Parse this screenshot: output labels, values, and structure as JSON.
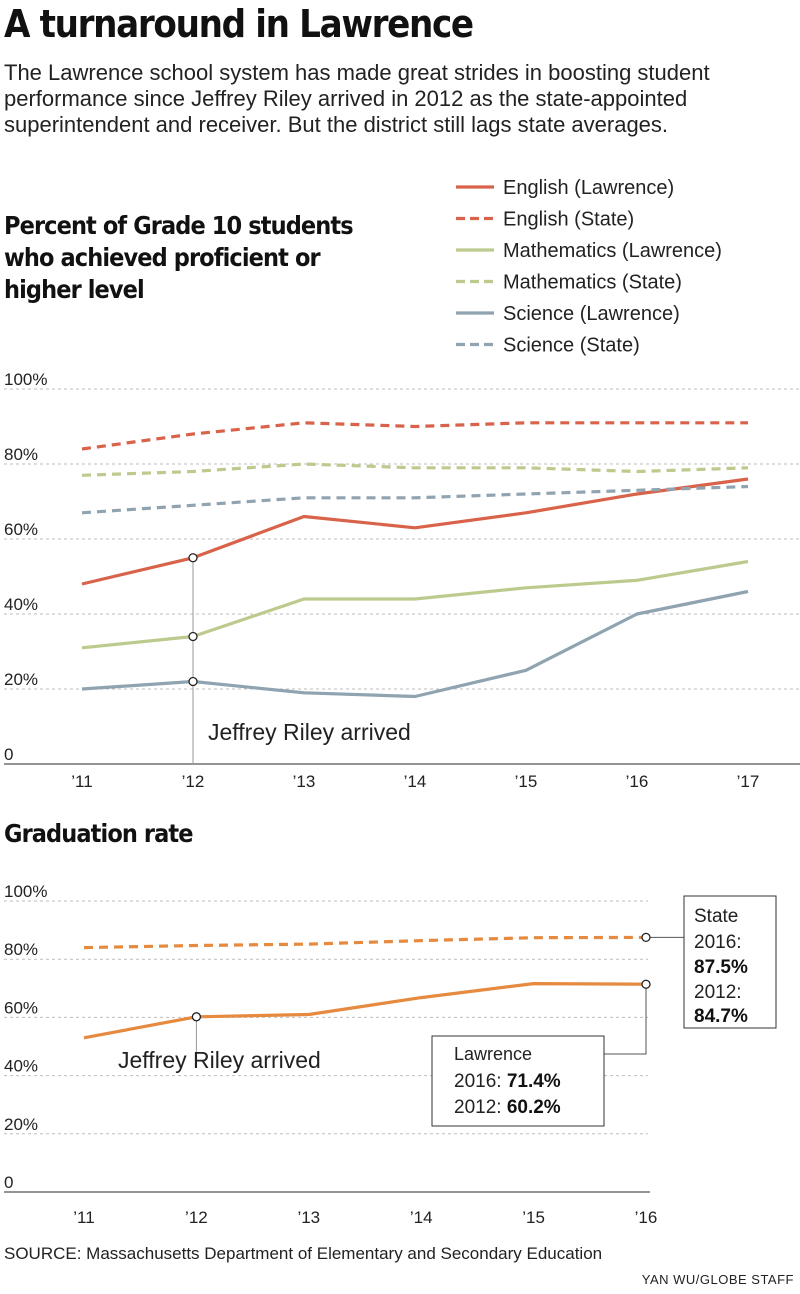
{
  "header": {
    "title": "A turnaround in Lawrence",
    "intro": "The Lawrence school system has made great strides in boosting student performance since Jeffrey Riley arrived in 2012 as the state-appointed superintendent and receiver. But the district still lags state averages."
  },
  "chart_data": [
    {
      "type": "line",
      "title": "Percent of Grade 10 students who achieved proficient or higher level",
      "categories": [
        "’11",
        "’12",
        "’13",
        "’14",
        "’15",
        "’16",
        "’17"
      ],
      "ylim": [
        0,
        100
      ],
      "yticks": [
        0,
        20,
        40,
        60,
        80,
        100
      ],
      "ytick_labels": [
        "0",
        "20%",
        "40%",
        "60%",
        "80%",
        "100%"
      ],
      "grid": true,
      "legend_position": "top-right",
      "annotation": {
        "text": "Jeffrey Riley arrived",
        "category_index": 1
      },
      "series": [
        {
          "name": "English (Lawrence)",
          "color": "#d9634a",
          "dashed": false,
          "values": [
            48,
            55,
            66,
            63,
            67,
            72,
            76
          ]
        },
        {
          "name": "English (State)",
          "color": "#d9634a",
          "dashed": true,
          "values": [
            84,
            88,
            91,
            90,
            91,
            91,
            91
          ]
        },
        {
          "name": "Mathematics (Lawrence)",
          "color": "#bccb8d",
          "dashed": false,
          "values": [
            31,
            34,
            44,
            44,
            47,
            49,
            54
          ]
        },
        {
          "name": "Mathematics (State)",
          "color": "#bccb8d",
          "dashed": true,
          "values": [
            77,
            78,
            80,
            79,
            79,
            78,
            79
          ]
        },
        {
          "name": "Science (Lawrence)",
          "color": "#8fa3b0",
          "dashed": false,
          "values": [
            20,
            22,
            19,
            18,
            25,
            40,
            46
          ]
        },
        {
          "name": "Science (State)",
          "color": "#8fa3b0",
          "dashed": true,
          "values": [
            67,
            69,
            71,
            71,
            72,
            73,
            74
          ]
        }
      ]
    },
    {
      "type": "line",
      "title": "Graduation rate",
      "categories": [
        "’11",
        "’12",
        "’13",
        "’14",
        "’15",
        "’16"
      ],
      "ylim": [
        0,
        100
      ],
      "yticks": [
        0,
        20,
        40,
        60,
        80,
        100
      ],
      "ytick_labels": [
        "0",
        "20%",
        "40%",
        "60%",
        "80%",
        "100%"
      ],
      "grid": true,
      "annotation": {
        "text": "Jeffrey Riley arrived",
        "category_index": 1
      },
      "series": [
        {
          "name": "State",
          "color": "#e58a3e",
          "dashed": true,
          "values": [
            84,
            84.7,
            85.2,
            86.4,
            87.4,
            87.5
          ]
        },
        {
          "name": "Lawrence",
          "color": "#e58a3e",
          "dashed": false,
          "values": [
            53,
            60.2,
            61,
            66.8,
            71.6,
            71.4
          ]
        }
      ],
      "callouts": {
        "state": {
          "title": "State",
          "year_2016_label": "2016:",
          "year_2016_value": "87.5%",
          "year_2012_label": "2012:",
          "year_2012_value": "84.7%"
        },
        "lawrence": {
          "title": "Lawrence",
          "year_2016_label": "2016:",
          "year_2016_value": "71.4%",
          "year_2012_label": "2012:",
          "year_2012_value": "60.2%"
        }
      }
    }
  ],
  "footer": {
    "source": "SOURCE: Massachusetts Department of Elementary and Secondary Education",
    "credit": "YAN WU/GLOBE STAFF"
  }
}
